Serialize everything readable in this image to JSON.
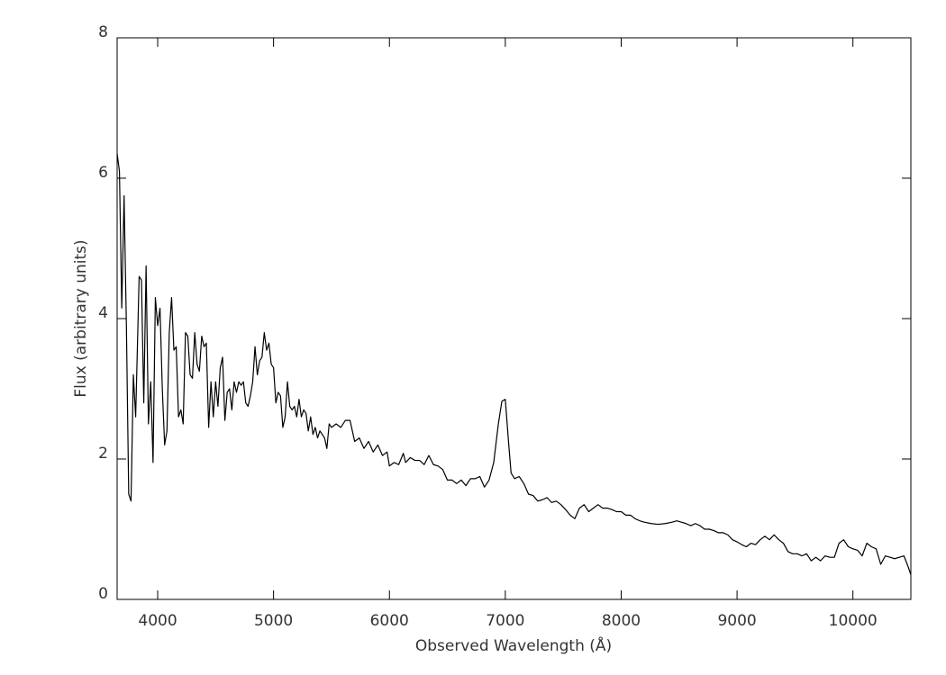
{
  "chart_data": {
    "type": "line",
    "xlabel": "Observed Wavelength (Å)",
    "ylabel": "Flux (arbitrary units)",
    "color": "#000000",
    "xlim": [
      3650,
      10500
    ],
    "ylim": [
      0,
      8
    ],
    "xticks": [
      4000,
      5000,
      6000,
      7000,
      8000,
      9000,
      10000
    ],
    "yticks": [
      0,
      2,
      4,
      6,
      8
    ],
    "x": [
      3650,
      3670,
      3690,
      3710,
      3730,
      3750,
      3770,
      3790,
      3810,
      3840,
      3860,
      3880,
      3900,
      3920,
      3940,
      3960,
      3980,
      4000,
      4020,
      4040,
      4060,
      4080,
      4100,
      4120,
      4140,
      4160,
      4180,
      4200,
      4220,
      4240,
      4260,
      4280,
      4300,
      4320,
      4340,
      4360,
      4380,
      4400,
      4420,
      4440,
      4460,
      4480,
      4500,
      4520,
      4540,
      4560,
      4580,
      4600,
      4620,
      4640,
      4660,
      4680,
      4700,
      4720,
      4740,
      4760,
      4780,
      4800,
      4820,
      4840,
      4860,
      4880,
      4900,
      4920,
      4940,
      4960,
      4980,
      5000,
      5020,
      5040,
      5060,
      5080,
      5100,
      5120,
      5140,
      5160,
      5180,
      5200,
      5220,
      5240,
      5260,
      5280,
      5300,
      5320,
      5340,
      5360,
      5380,
      5400,
      5420,
      5440,
      5460,
      5480,
      5500,
      5540,
      5580,
      5620,
      5660,
      5700,
      5740,
      5780,
      5820,
      5860,
      5900,
      5940,
      5980,
      6000,
      6040,
      6080,
      6120,
      6140,
      6180,
      6220,
      6260,
      6300,
      6340,
      6380,
      6420,
      6460,
      6500,
      6540,
      6580,
      6620,
      6660,
      6700,
      6740,
      6780,
      6820,
      6860,
      6900,
      6940,
      6970,
      7000,
      7030,
      7050,
      7080,
      7120,
      7160,
      7200,
      7240,
      7280,
      7320,
      7360,
      7400,
      7440,
      7480,
      7520,
      7560,
      7600,
      7640,
      7680,
      7720,
      7760,
      7800,
      7840,
      7880,
      7920,
      7960,
      8000,
      8040,
      8080,
      8120,
      8160,
      8200,
      8260,
      8320,
      8380,
      8440,
      8480,
      8520,
      8560,
      8600,
      8640,
      8680,
      8720,
      8760,
      8800,
      8840,
      8880,
      8920,
      8960,
      9000,
      9040,
      9080,
      9120,
      9160,
      9200,
      9240,
      9280,
      9320,
      9360,
      9400,
      9440,
      9480,
      9520,
      9560,
      9600,
      9640,
      9680,
      9720,
      9760,
      9800,
      9840,
      9880,
      9920,
      9960,
      10000,
      10040,
      10080,
      10120,
      10160,
      10200,
      10240,
      10280,
      10320,
      10360,
      10400,
      10440,
      10480,
      10500
    ],
    "values": [
      6.35,
      6.1,
      4.15,
      5.75,
      3.9,
      1.5,
      1.4,
      3.2,
      2.6,
      4.6,
      4.55,
      2.8,
      4.75,
      2.5,
      3.1,
      1.95,
      4.3,
      3.9,
      4.15,
      3.0,
      2.2,
      2.4,
      3.8,
      4.3,
      3.55,
      3.6,
      2.6,
      2.7,
      2.5,
      3.8,
      3.75,
      3.2,
      3.15,
      3.8,
      3.35,
      3.25,
      3.75,
      3.6,
      3.65,
      2.45,
      3.1,
      2.6,
      3.1,
      2.75,
      3.3,
      3.45,
      2.55,
      2.95,
      3.0,
      2.7,
      3.1,
      2.95,
      3.1,
      3.05,
      3.1,
      2.8,
      2.75,
      2.9,
      3.1,
      3.6,
      3.2,
      3.4,
      3.45,
      3.8,
      3.55,
      3.65,
      3.35,
      3.3,
      2.8,
      2.95,
      2.9,
      2.45,
      2.6,
      3.1,
      2.75,
      2.7,
      2.75,
      2.6,
      2.85,
      2.6,
      2.7,
      2.65,
      2.4,
      2.6,
      2.35,
      2.45,
      2.3,
      2.4,
      2.35,
      2.3,
      2.15,
      2.5,
      2.45,
      2.5,
      2.45,
      2.55,
      2.55,
      2.25,
      2.3,
      2.15,
      2.25,
      2.1,
      2.2,
      2.05,
      2.1,
      1.9,
      1.95,
      1.92,
      2.08,
      1.95,
      2.02,
      1.98,
      1.98,
      1.92,
      2.05,
      1.92,
      1.9,
      1.85,
      1.7,
      1.7,
      1.65,
      1.7,
      1.62,
      1.72,
      1.72,
      1.75,
      1.6,
      1.7,
      1.95,
      2.5,
      2.82,
      2.85,
      2.2,
      1.8,
      1.72,
      1.75,
      1.65,
      1.5,
      1.48,
      1.4,
      1.42,
      1.45,
      1.38,
      1.4,
      1.35,
      1.28,
      1.2,
      1.15,
      1.3,
      1.35,
      1.25,
      1.3,
      1.35,
      1.3,
      1.3,
      1.28,
      1.25,
      1.25,
      1.2,
      1.2,
      1.15,
      1.12,
      1.1,
      1.08,
      1.07,
      1.08,
      1.1,
      1.12,
      1.1,
      1.08,
      1.05,
      1.08,
      1.05,
      1.0,
      1.0,
      0.98,
      0.95,
      0.95,
      0.92,
      0.85,
      0.82,
      0.78,
      0.75,
      0.8,
      0.78,
      0.85,
      0.9,
      0.85,
      0.92,
      0.85,
      0.8,
      0.68,
      0.65,
      0.65,
      0.62,
      0.65,
      0.55,
      0.6,
      0.55,
      0.62,
      0.6,
      0.6,
      0.8,
      0.85,
      0.75,
      0.72,
      0.7,
      0.62,
      0.8,
      0.75,
      0.72,
      0.5,
      0.62,
      0.6,
      0.58,
      0.6,
      0.62,
      0.45,
      0.35
    ]
  }
}
